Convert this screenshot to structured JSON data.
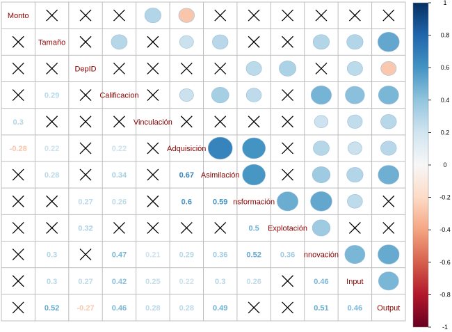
{
  "chart_data": {
    "type": "heatmap",
    "variables": [
      "Monto",
      "Tamaño",
      "DepID",
      "Calificacion",
      "Vinculación",
      "Adquisición",
      "Asimilación",
      "Transformación",
      "Explotación",
      "Innovación",
      "Input",
      "Output"
    ],
    "diagonal_labels": [
      "Monto",
      "Tamaño",
      "DepID",
      "Calificacion",
      "Vinculación",
      "Adquisición",
      "Asimilación",
      "nsformación",
      "Explotación",
      "nnovación",
      "Input",
      "Output"
    ],
    "lower": [
      [
        null
      ],
      [
        "x",
        null
      ],
      [
        "x",
        "x",
        null
      ],
      [
        "x",
        0.29,
        "x",
        null
      ],
      [
        0.3,
        "x",
        "x",
        "x",
        null
      ],
      [
        -0.28,
        0.22,
        "x",
        0.22,
        "x",
        null
      ],
      [
        "x",
        0.28,
        "x",
        0.34,
        "x",
        0.67,
        null
      ],
      [
        "x",
        "x",
        0.27,
        0.26,
        "x",
        0.6,
        0.59,
        null
      ],
      [
        "x",
        "x",
        0.32,
        "x",
        "x",
        "x",
        "x",
        0.5,
        null
      ],
      [
        "x",
        0.3,
        "x",
        0.47,
        0.21,
        0.29,
        0.36,
        0.52,
        0.36,
        null
      ],
      [
        "x",
        0.3,
        0.27,
        0.42,
        0.25,
        0.22,
        0.3,
        0.26,
        "x",
        0.46,
        null
      ],
      [
        "x",
        0.52,
        -0.27,
        0.46,
        0.28,
        0.28,
        0.49,
        "x",
        "x",
        0.51,
        0.46,
        null
      ]
    ],
    "upper": [
      [
        null,
        "x",
        "x",
        "x",
        0.3,
        -0.28,
        "x",
        "x",
        "x",
        "x",
        "x",
        "x"
      ],
      [
        null,
        null,
        "x",
        0.29,
        "x",
        0.22,
        0.28,
        "x",
        "x",
        0.3,
        0.3,
        0.52
      ],
      [
        null,
        null,
        null,
        "x",
        "x",
        "x",
        "x",
        0.27,
        0.32,
        "x",
        0.27,
        -0.27
      ],
      [
        null,
        null,
        null,
        null,
        "x",
        0.22,
        0.34,
        0.26,
        "x",
        0.47,
        0.42,
        0.46
      ],
      [
        null,
        null,
        null,
        null,
        null,
        "x",
        "x",
        "x",
        "x",
        0.21,
        0.25,
        0.28
      ],
      [
        null,
        null,
        null,
        null,
        null,
        null,
        0.67,
        0.6,
        "x",
        0.29,
        0.22,
        0.28
      ],
      [
        null,
        null,
        null,
        null,
        null,
        null,
        null,
        0.59,
        "x",
        0.36,
        0.3,
        0.49
      ],
      [
        null,
        null,
        null,
        null,
        null,
        null,
        null,
        null,
        0.5,
        0.52,
        0.26,
        "x"
      ],
      [
        null,
        null,
        null,
        null,
        null,
        null,
        null,
        null,
        null,
        0.36,
        "x",
        "x"
      ],
      [
        null,
        null,
        null,
        null,
        null,
        null,
        null,
        null,
        null,
        null,
        0.46,
        0.51
      ],
      [
        null,
        null,
        null,
        null,
        null,
        null,
        null,
        null,
        null,
        null,
        null,
        0.46
      ],
      [
        null,
        null,
        null,
        null,
        null,
        null,
        null,
        null,
        null,
        null,
        null,
        null
      ]
    ],
    "colorbar": {
      "range": [
        -1,
        1
      ],
      "ticks": [
        1,
        0.8,
        0.6,
        0.4,
        0.2,
        0,
        -0.2,
        -0.4,
        -0.6,
        -0.8,
        -1
      ],
      "low_color": "#67001F",
      "mid_color": "#F7F7F7",
      "high_color": "#053061",
      "placement": "right"
    }
  }
}
